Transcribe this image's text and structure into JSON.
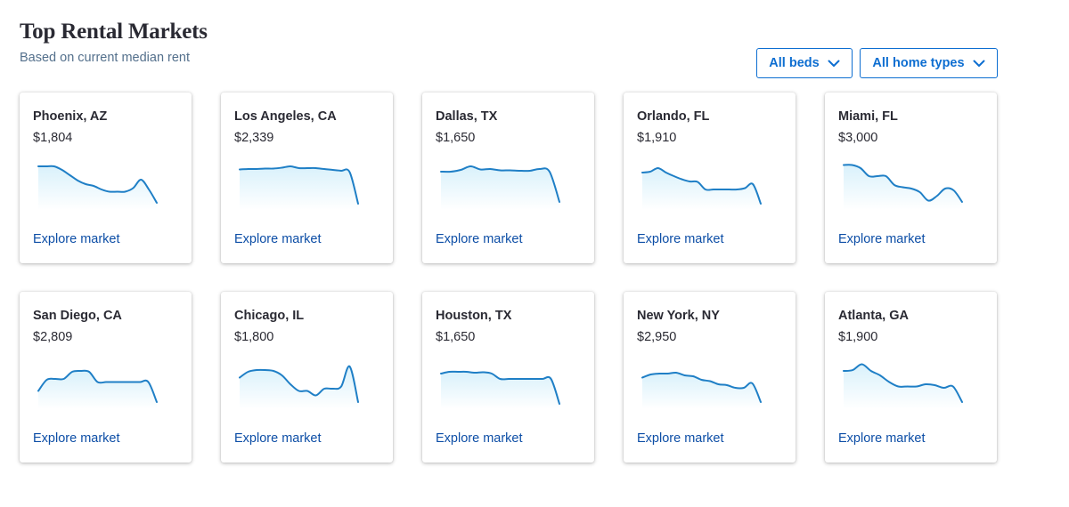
{
  "header": {
    "title": "Top Rental Markets",
    "subtitle": "Based on current median rent"
  },
  "filters": {
    "beds_label": "All beds",
    "types_label": "All home types",
    "icon": "chevron-down-icon"
  },
  "colors": {
    "accent": "#0d6ed1",
    "link": "#0d4ea6",
    "sparkline": "#1f7fc6",
    "sparkline_fill": "#d9f1fb"
  },
  "explore_label": "Explore market",
  "markets": [
    {
      "city": "Phoenix, AZ",
      "rent": "$1,804",
      "trend": [
        0.92,
        0.92,
        0.92,
        0.84,
        0.72,
        0.6,
        0.52,
        0.48,
        0.4,
        0.35,
        0.35,
        0.35,
        0.43,
        0.62,
        0.4,
        0.1
      ]
    },
    {
      "city": "Los Angeles, CA",
      "rent": "$2,339",
      "trend": [
        0.85,
        0.86,
        0.86,
        0.87,
        0.87,
        0.89,
        0.92,
        0.88,
        0.88,
        0.88,
        0.86,
        0.84,
        0.82,
        0.79,
        0.08
      ]
    },
    {
      "city": "Dallas, TX",
      "rent": "$1,650",
      "trend": [
        0.8,
        0.8,
        0.84,
        0.92,
        0.85,
        0.86,
        0.83,
        0.83,
        0.82,
        0.82,
        0.86,
        0.8,
        0.12
      ]
    },
    {
      "city": "Orlando, FL",
      "rent": "$1,910",
      "trend": [
        0.78,
        0.8,
        0.88,
        0.78,
        0.7,
        0.63,
        0.58,
        0.57,
        0.4,
        0.4,
        0.4,
        0.4,
        0.4,
        0.43,
        0.52,
        0.08
      ]
    },
    {
      "city": "Miami, FL",
      "rent": "$3,000",
      "trend": [
        0.95,
        0.95,
        0.88,
        0.7,
        0.7,
        0.7,
        0.5,
        0.45,
        0.42,
        0.34,
        0.15,
        0.25,
        0.42,
        0.38,
        0.12
      ]
    },
    {
      "city": "San Diego, CA",
      "rent": "$2,809",
      "trend": [
        0.35,
        0.6,
        0.62,
        0.62,
        0.78,
        0.8,
        0.78,
        0.55,
        0.55,
        0.55,
        0.55,
        0.55,
        0.55,
        0.55,
        0.1
      ]
    },
    {
      "city": "Chicago, IL",
      "rent": "$1,800",
      "trend": [
        0.65,
        0.78,
        0.82,
        0.82,
        0.8,
        0.7,
        0.5,
        0.35,
        0.35,
        0.25,
        0.4,
        0.4,
        0.45,
        0.9,
        0.1
      ]
    },
    {
      "city": "Houston, TX",
      "rent": "$1,650",
      "trend": [
        0.74,
        0.78,
        0.78,
        0.78,
        0.76,
        0.77,
        0.74,
        0.62,
        0.62,
        0.62,
        0.62,
        0.62,
        0.62,
        0.62,
        0.06
      ]
    },
    {
      "city": "New York, NY",
      "rent": "$2,950",
      "trend": [
        0.65,
        0.72,
        0.74,
        0.74,
        0.76,
        0.7,
        0.68,
        0.6,
        0.57,
        0.5,
        0.48,
        0.42,
        0.42,
        0.52,
        0.1
      ]
    },
    {
      "city": "Atlanta, GA",
      "rent": "$1,900",
      "trend": [
        0.8,
        0.82,
        0.95,
        0.8,
        0.7,
        0.55,
        0.45,
        0.45,
        0.45,
        0.5,
        0.48,
        0.42,
        0.45,
        0.1
      ]
    }
  ]
}
